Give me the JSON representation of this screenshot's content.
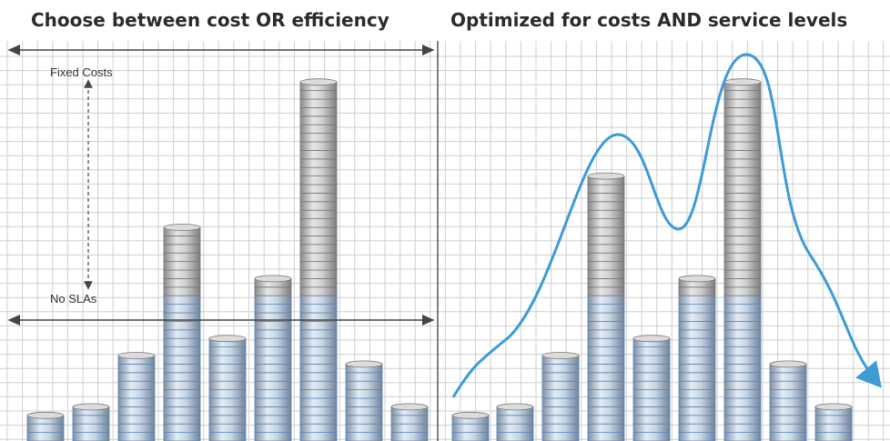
{
  "left_panel": {
    "title": "Choose between cost OR efficiency",
    "labels": {
      "fixed_costs": "Fixed Costs",
      "no_slas": "No SLAs"
    }
  },
  "right_panel": {
    "title": "Optimized for costs AND service levels"
  }
}
